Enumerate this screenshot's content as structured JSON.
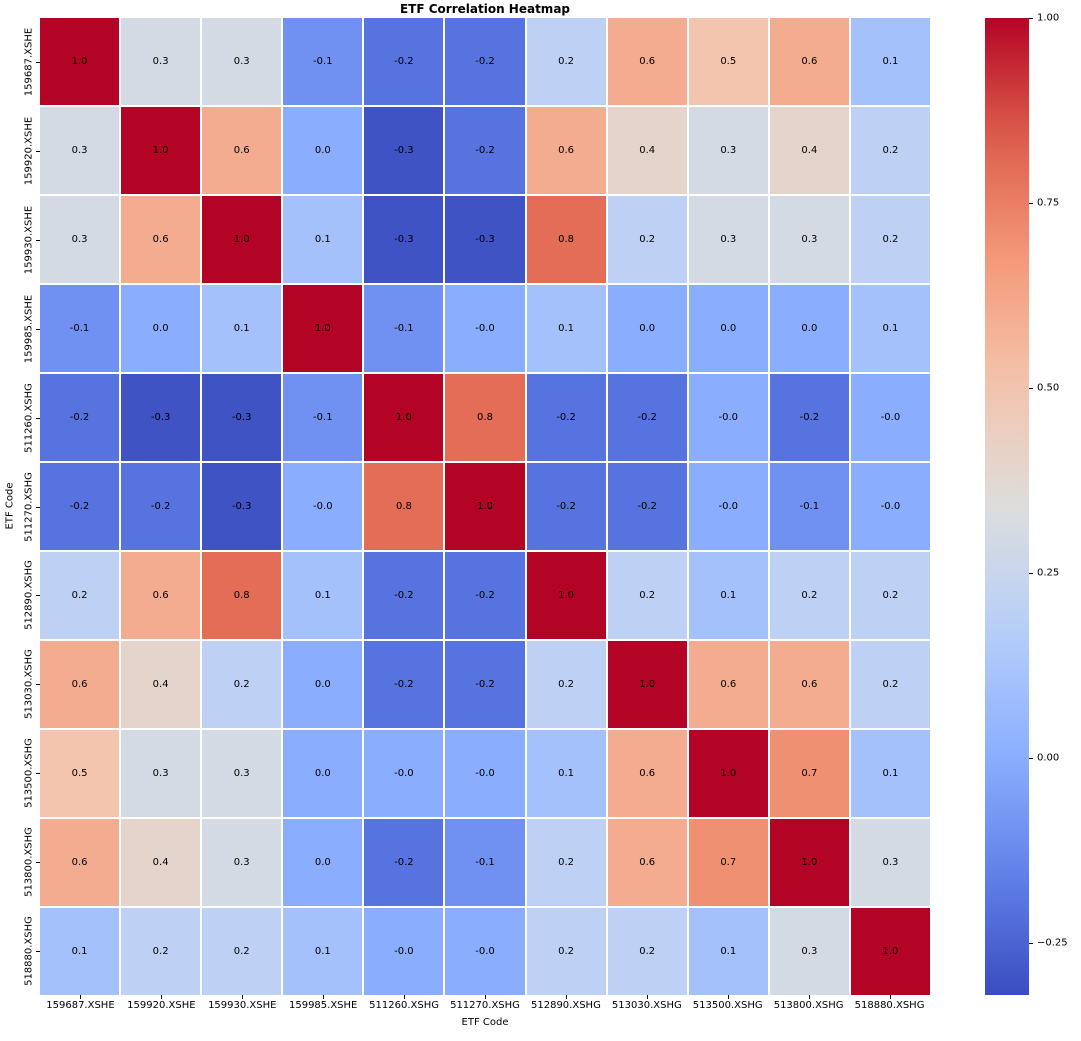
{
  "chart_data": {
    "type": "heatmap",
    "title": "ETF Correlation Heatmap",
    "xlabel": "ETF Code",
    "ylabel": "ETF Code",
    "categories": [
      "159687.XSHE",
      "159920.XSHE",
      "159930.XSHE",
      "159985.XSHE",
      "511260.XSHG",
      "511270.XSHG",
      "512890.XSHG",
      "513030.XSHG",
      "513500.XSHG",
      "513800.XSHG",
      "518880.XSHG"
    ],
    "matrix": [
      [
        "1.0",
        "0.3",
        "0.3",
        "-0.1",
        "-0.2",
        "-0.2",
        "0.2",
        "0.6",
        "0.5",
        "0.6",
        "0.1"
      ],
      [
        "0.3",
        "1.0",
        "0.6",
        "0.0",
        "-0.3",
        "-0.2",
        "0.6",
        "0.4",
        "0.3",
        "0.4",
        "0.2"
      ],
      [
        "0.3",
        "0.6",
        "1.0",
        "0.1",
        "-0.3",
        "-0.3",
        "0.8",
        "0.2",
        "0.3",
        "0.3",
        "0.2"
      ],
      [
        "-0.1",
        "0.0",
        "0.1",
        "1.0",
        "-0.1",
        "-0.0",
        "0.1",
        "0.0",
        "0.0",
        "0.0",
        "0.1"
      ],
      [
        "-0.2",
        "-0.3",
        "-0.3",
        "-0.1",
        "1.0",
        "0.8",
        "-0.2",
        "-0.2",
        "-0.0",
        "-0.2",
        "-0.0"
      ],
      [
        "-0.2",
        "-0.2",
        "-0.3",
        "-0.0",
        "0.8",
        "1.0",
        "-0.2",
        "-0.2",
        "-0.0",
        "-0.1",
        "-0.0"
      ],
      [
        "0.2",
        "0.6",
        "0.8",
        "0.1",
        "-0.2",
        "-0.2",
        "1.0",
        "0.2",
        "0.1",
        "0.2",
        "0.2"
      ],
      [
        "0.6",
        "0.4",
        "0.2",
        "0.0",
        "-0.2",
        "-0.2",
        "0.2",
        "1.0",
        "0.6",
        "0.6",
        "0.2"
      ],
      [
        "0.5",
        "0.3",
        "0.3",
        "0.0",
        "-0.0",
        "-0.0",
        "0.1",
        "0.6",
        "1.0",
        "0.7",
        "0.1"
      ],
      [
        "0.6",
        "0.4",
        "0.3",
        "0.0",
        "-0.2",
        "-0.1",
        "0.2",
        "0.6",
        "0.7",
        "1.0",
        "0.3"
      ],
      [
        "0.1",
        "0.2",
        "0.2",
        "0.1",
        "-0.0",
        "-0.0",
        "0.2",
        "0.2",
        "0.1",
        "0.3",
        "1.0"
      ]
    ],
    "colormap": "coolwarm",
    "color_range": [
      -0.32,
      1.0
    ],
    "colorbar_ticks": [
      "1.00",
      "0.75",
      "0.50",
      "0.25",
      "0.00",
      "−0.25"
    ],
    "colorbar_tick_values": [
      1.0,
      0.75,
      0.5,
      0.25,
      0.0,
      -0.25
    ],
    "legend_position": "right",
    "grid": false,
    "background_color": "#ffffff",
    "annotation_color": "#000000",
    "gridline_color": "#ffffff"
  }
}
